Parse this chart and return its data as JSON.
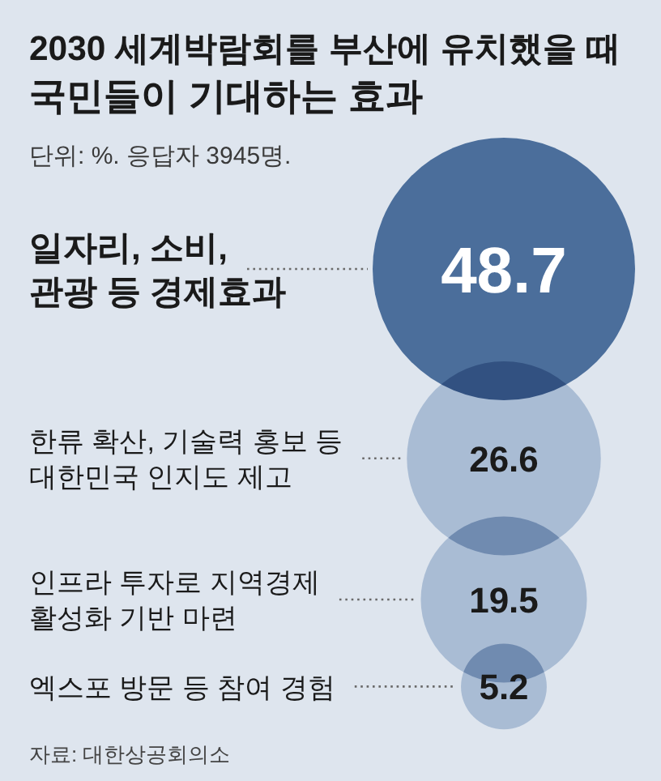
{
  "chart_data": {
    "type": "other",
    "title": "2030 세계박람회를 부산에 유치했을 때\n국민들이 기대하는 효과",
    "subtitle": "단위: %. 응답자 3945명.",
    "categories": [
      "일자리, 소비,\n관광 등 경제효과",
      "한류 확산, 기술력 홍보 등\n대한민국 인지도 제고",
      "인프라 투자로 지역경제\n활성화 기반 마련",
      "엑스포 방문 등 참여 경험"
    ],
    "values": [
      48.7,
      26.6,
      19.5,
      5.2
    ],
    "colors": [
      "#4b6e9b",
      "#a9bcd4",
      "#a9bcd4",
      "#a9bcd4"
    ],
    "data_labels": true,
    "annotations": [
      "자료: 대한상공회의소"
    ]
  }
}
